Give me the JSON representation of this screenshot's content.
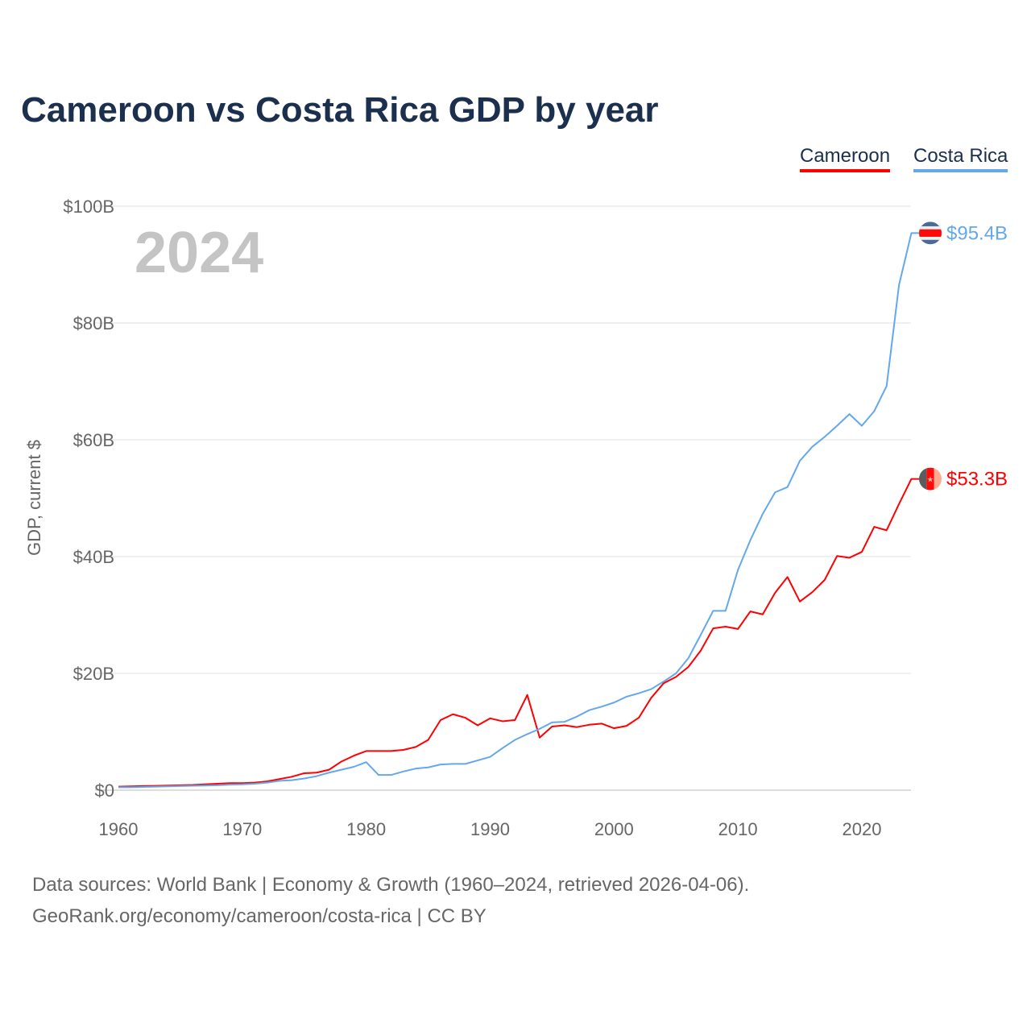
{
  "chart_data": {
    "type": "line",
    "title": "Cameroon vs Costa Rica GDP by year",
    "ylabel": "GDP, current $",
    "xlabel": "",
    "ylim": [
      0,
      100
    ],
    "xlim": [
      1960,
      2024
    ],
    "grid": true,
    "legend_position": "top-right",
    "year_watermark": "2024",
    "y_ticks": [
      "$0",
      "$20B",
      "$40B",
      "$60B",
      "$80B",
      "$100B"
    ],
    "y_tick_values": [
      0,
      20,
      40,
      60,
      80,
      100
    ],
    "x_ticks": [
      "1960",
      "1970",
      "1980",
      "1990",
      "2000",
      "2010",
      "2020"
    ],
    "x_tick_values": [
      1960,
      1970,
      1980,
      1990,
      2000,
      2010,
      2020
    ],
    "x": [
      1960,
      1961,
      1962,
      1963,
      1964,
      1965,
      1966,
      1967,
      1968,
      1969,
      1970,
      1971,
      1972,
      1973,
      1974,
      1975,
      1976,
      1977,
      1978,
      1979,
      1980,
      1981,
      1982,
      1983,
      1984,
      1985,
      1986,
      1987,
      1988,
      1989,
      1990,
      1991,
      1992,
      1993,
      1994,
      1995,
      1996,
      1997,
      1998,
      1999,
      2000,
      2001,
      2002,
      2003,
      2004,
      2005,
      2006,
      2007,
      2008,
      2009,
      2010,
      2011,
      2012,
      2013,
      2014,
      2015,
      2016,
      2017,
      2018,
      2019,
      2020,
      2021,
      2022,
      2023,
      2024
    ],
    "series": [
      {
        "name": "Cameroon",
        "color": "#ff0000",
        "end_label": "$53.3B",
        "values": [
          0.6,
          0.65,
          0.7,
          0.75,
          0.8,
          0.85,
          0.9,
          1.0,
          1.1,
          1.2,
          1.2,
          1.3,
          1.5,
          1.9,
          2.3,
          2.9,
          3.0,
          3.5,
          4.9,
          5.9,
          6.7,
          6.7,
          6.7,
          6.9,
          7.4,
          8.6,
          12.0,
          13.0,
          12.4,
          11.1,
          12.3,
          11.8,
          12.0,
          16.3,
          9.0,
          10.9,
          11.1,
          10.8,
          11.2,
          11.4,
          10.6,
          11.0,
          12.4,
          15.8,
          18.3,
          19.4,
          21.1,
          23.9,
          27.7,
          28.0,
          27.6,
          30.6,
          30.1,
          33.8,
          36.5,
          32.3,
          33.9,
          36.0,
          40.1,
          39.8,
          40.8,
          45.1,
          44.5,
          49.0,
          53.3
        ]
      },
      {
        "name": "Costa Rica",
        "color": "#64a8ec",
        "end_label": "$95.4B",
        "values": [
          0.5,
          0.5,
          0.55,
          0.6,
          0.65,
          0.7,
          0.75,
          0.8,
          0.85,
          0.95,
          1.0,
          1.1,
          1.3,
          1.6,
          1.7,
          2.0,
          2.4,
          3.0,
          3.5,
          4.0,
          4.8,
          2.6,
          2.6,
          3.2,
          3.7,
          3.9,
          4.4,
          4.5,
          4.5,
          5.1,
          5.7,
          7.2,
          8.6,
          9.6,
          10.5,
          11.6,
          11.7,
          12.6,
          13.7,
          14.3,
          15.0,
          16.0,
          16.6,
          17.3,
          18.6,
          20.0,
          22.6,
          26.6,
          30.7,
          30.7,
          37.7,
          42.8,
          47.3,
          51.0,
          51.9,
          56.4,
          58.8,
          60.5,
          62.4,
          64.4,
          62.4,
          64.9,
          69.2,
          86.5,
          95.4
        ]
      }
    ]
  },
  "footer": {
    "line1": "Data sources: World Bank | Economy & Growth (1960–2024, retrieved 2026-04-06).",
    "line2": "GeoRank.org/economy/cameroon/costa-rica | CC BY"
  }
}
